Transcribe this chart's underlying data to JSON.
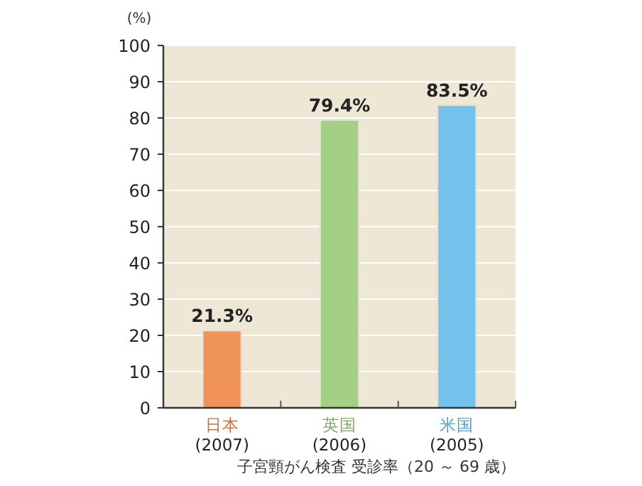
{
  "chart_data": {
    "type": "bar",
    "ylabel": "(%)",
    "xlabel": "子宮頸がん検査 受診率（20 ～ 69 歳）",
    "categories": [
      "日本 (2007)",
      "英国 (2006)",
      "米国 (2005)"
    ],
    "values": [
      21.3,
      79.4,
      83.5
    ],
    "value_labels": [
      "21.3%",
      "79.4%",
      "83.5%"
    ],
    "colors": [
      "#f0935a",
      "#a3d084",
      "#72c2ec"
    ],
    "ylim": [
      0,
      100
    ],
    "yticks": [
      0,
      10,
      20,
      30,
      40,
      50,
      60,
      70,
      80,
      90,
      100
    ],
    "grid": "y"
  }
}
